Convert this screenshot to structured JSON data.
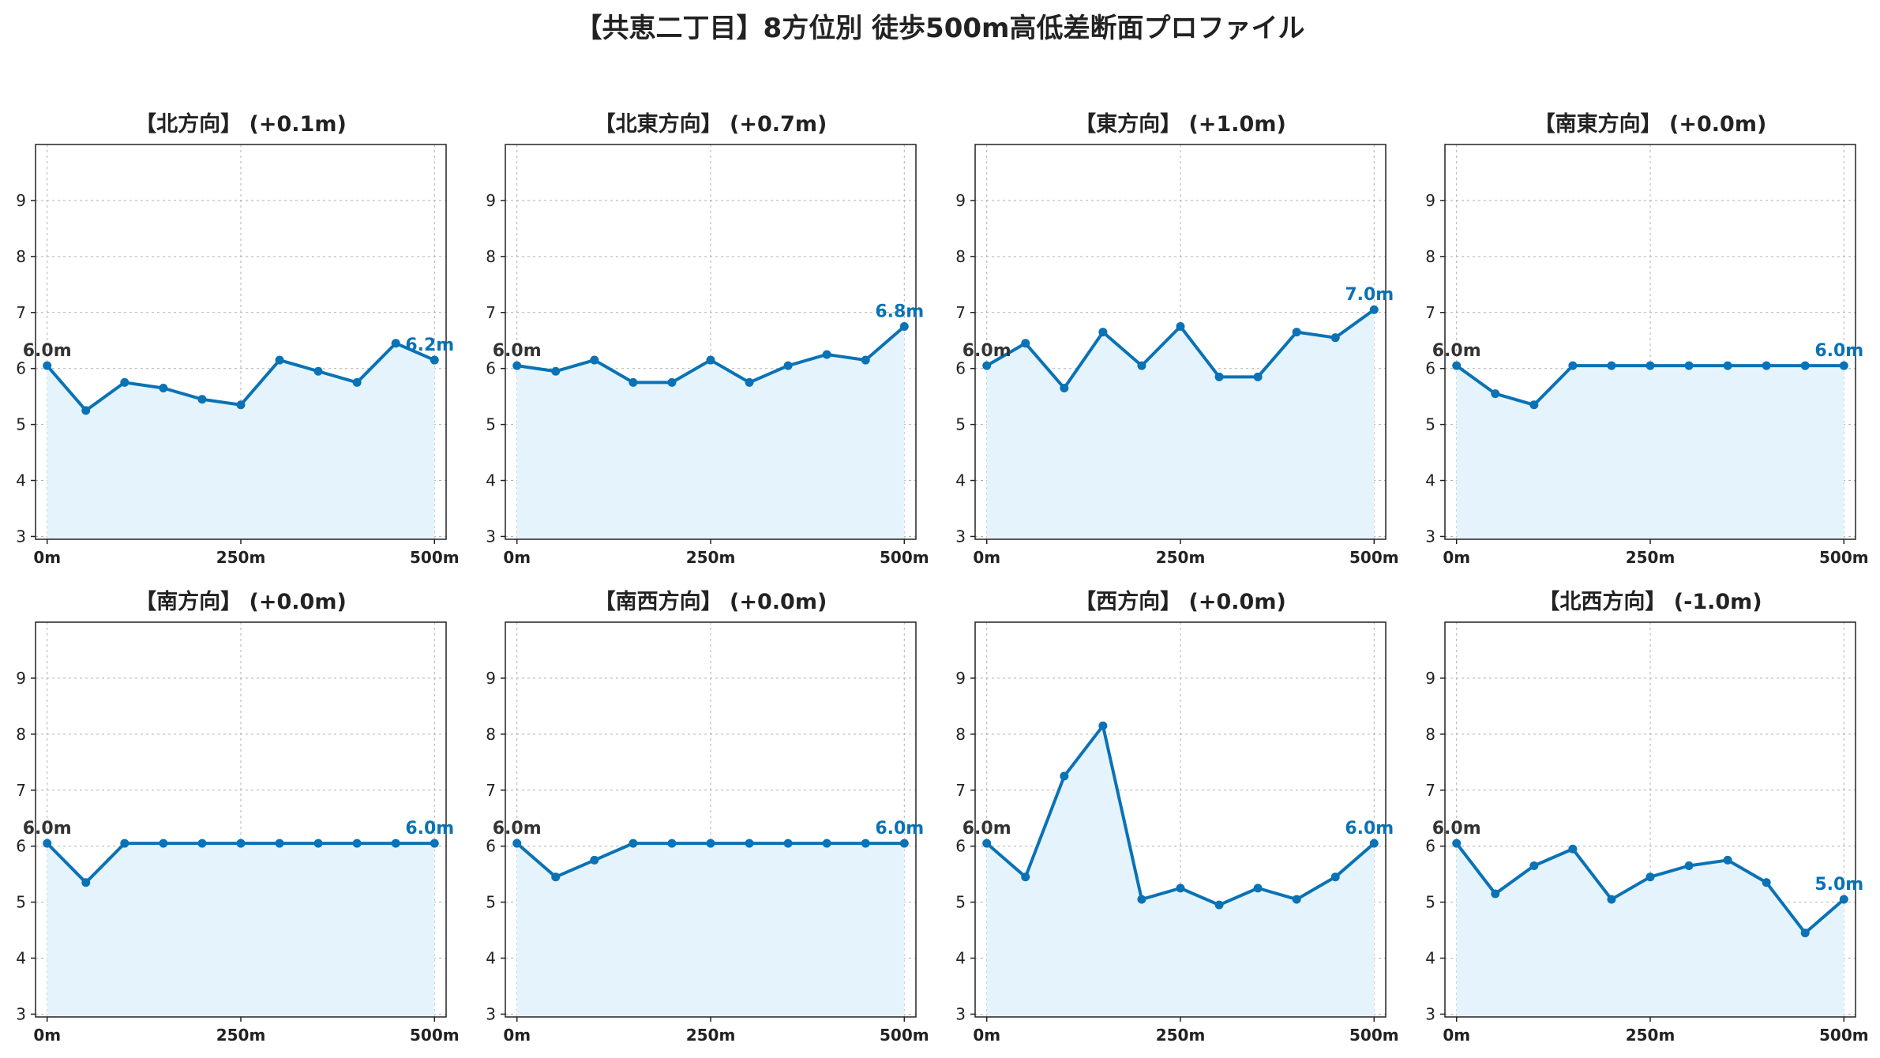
{
  "title": "【共恵二丁目】8方位別 徒歩500m高低差断面プロファイル",
  "colors": {
    "line": "#0a72b5",
    "fill": "#e5f4fc",
    "start_label": "#333333",
    "end_label": "#0a72b5",
    "grid": "#b0b0b0"
  },
  "chart_data": [
    {
      "type": "line",
      "title": "【北方向】 (+0.1m)",
      "x": [
        0,
        50,
        100,
        150,
        200,
        250,
        300,
        350,
        400,
        450,
        500
      ],
      "values": [
        6.05,
        5.25,
        5.75,
        5.65,
        5.45,
        5.35,
        6.15,
        5.95,
        5.75,
        6.45,
        6.15
      ],
      "start_label": "6.0m",
      "end_label": "6.2m",
      "xticks": [
        "0m",
        "250m",
        "500m"
      ],
      "yticks": [
        "3",
        "4",
        "5",
        "6",
        "7",
        "8",
        "9"
      ],
      "xlim": [
        -15,
        515
      ],
      "ylim": [
        2.95,
        10.0
      ],
      "grid": true
    },
    {
      "type": "line",
      "title": "【北東方向】 (+0.7m)",
      "x": [
        0,
        50,
        100,
        150,
        200,
        250,
        300,
        350,
        400,
        450,
        500
      ],
      "values": [
        6.05,
        5.95,
        6.15,
        5.75,
        5.75,
        6.15,
        5.75,
        6.05,
        6.25,
        6.15,
        6.75
      ],
      "start_label": "6.0m",
      "end_label": "6.8m",
      "xticks": [
        "0m",
        "250m",
        "500m"
      ],
      "yticks": [
        "3",
        "4",
        "5",
        "6",
        "7",
        "8",
        "9"
      ],
      "xlim": [
        -15,
        515
      ],
      "ylim": [
        2.95,
        10.0
      ],
      "grid": true
    },
    {
      "type": "line",
      "title": "【東方向】 (+1.0m)",
      "x": [
        0,
        50,
        100,
        150,
        200,
        250,
        300,
        350,
        400,
        450,
        500
      ],
      "values": [
        6.05,
        6.45,
        5.65,
        6.65,
        6.05,
        6.75,
        5.85,
        5.85,
        6.65,
        6.55,
        7.05
      ],
      "start_label": "6.0m",
      "end_label": "7.0m",
      "xticks": [
        "0m",
        "250m",
        "500m"
      ],
      "yticks": [
        "3",
        "4",
        "5",
        "6",
        "7",
        "8",
        "9"
      ],
      "xlim": [
        -15,
        515
      ],
      "ylim": [
        2.95,
        10.0
      ],
      "grid": true
    },
    {
      "type": "line",
      "title": "【南東方向】 (+0.0m)",
      "x": [
        0,
        50,
        100,
        150,
        200,
        250,
        300,
        350,
        400,
        450,
        500
      ],
      "values": [
        6.05,
        5.55,
        5.35,
        6.05,
        6.05,
        6.05,
        6.05,
        6.05,
        6.05,
        6.05,
        6.05
      ],
      "start_label": "6.0m",
      "end_label": "6.0m",
      "xticks": [
        "0m",
        "250m",
        "500m"
      ],
      "yticks": [
        "3",
        "4",
        "5",
        "6",
        "7",
        "8",
        "9"
      ],
      "xlim": [
        -15,
        515
      ],
      "ylim": [
        2.95,
        10.0
      ],
      "grid": true
    },
    {
      "type": "line",
      "title": "【南方向】 (+0.0m)",
      "x": [
        0,
        50,
        100,
        150,
        200,
        250,
        300,
        350,
        400,
        450,
        500
      ],
      "values": [
        6.05,
        5.35,
        6.05,
        6.05,
        6.05,
        6.05,
        6.05,
        6.05,
        6.05,
        6.05,
        6.05
      ],
      "start_label": "6.0m",
      "end_label": "6.0m",
      "xticks": [
        "0m",
        "250m",
        "500m"
      ],
      "yticks": [
        "3",
        "4",
        "5",
        "6",
        "7",
        "8",
        "9"
      ],
      "xlim": [
        -15,
        515
      ],
      "ylim": [
        2.95,
        10.0
      ],
      "grid": true
    },
    {
      "type": "line",
      "title": "【南西方向】 (+0.0m)",
      "x": [
        0,
        50,
        100,
        150,
        200,
        250,
        300,
        350,
        400,
        450,
        500
      ],
      "values": [
        6.05,
        5.45,
        5.75,
        6.05,
        6.05,
        6.05,
        6.05,
        6.05,
        6.05,
        6.05,
        6.05
      ],
      "start_label": "6.0m",
      "end_label": "6.0m",
      "xticks": [
        "0m",
        "250m",
        "500m"
      ],
      "yticks": [
        "3",
        "4",
        "5",
        "6",
        "7",
        "8",
        "9"
      ],
      "xlim": [
        -15,
        515
      ],
      "ylim": [
        2.95,
        10.0
      ],
      "grid": true
    },
    {
      "type": "line",
      "title": "【西方向】 (+0.0m)",
      "x": [
        0,
        50,
        100,
        150,
        200,
        250,
        300,
        350,
        400,
        450,
        500
      ],
      "values": [
        6.05,
        5.45,
        7.25,
        8.15,
        5.05,
        5.25,
        4.95,
        5.25,
        5.05,
        5.45,
        6.05
      ],
      "start_label": "6.0m",
      "end_label": "6.0m",
      "xticks": [
        "0m",
        "250m",
        "500m"
      ],
      "yticks": [
        "3",
        "4",
        "5",
        "6",
        "7",
        "8",
        "9"
      ],
      "xlim": [
        -15,
        515
      ],
      "ylim": [
        2.95,
        10.0
      ],
      "grid": true
    },
    {
      "type": "line",
      "title": "【北西方向】 (-1.0m)",
      "x": [
        0,
        50,
        100,
        150,
        200,
        250,
        300,
        350,
        400,
        450,
        500
      ],
      "values": [
        6.05,
        5.15,
        5.65,
        5.95,
        5.05,
        5.45,
        5.65,
        5.75,
        5.35,
        4.45,
        5.05
      ],
      "start_label": "6.0m",
      "end_label": "5.0m",
      "xticks": [
        "0m",
        "250m",
        "500m"
      ],
      "yticks": [
        "3",
        "4",
        "5",
        "6",
        "7",
        "8",
        "9"
      ],
      "xlim": [
        -15,
        515
      ],
      "ylim": [
        2.95,
        10.0
      ],
      "grid": true
    }
  ]
}
